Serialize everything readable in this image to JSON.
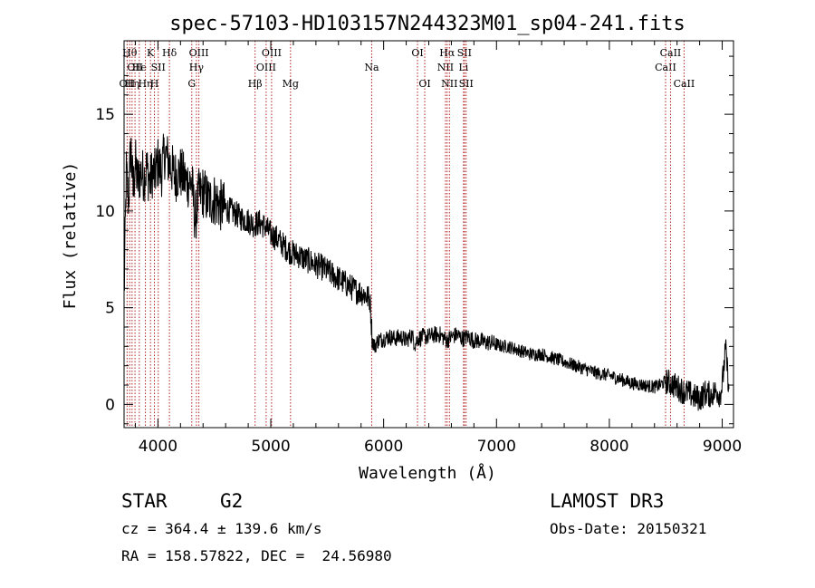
{
  "chart_data": {
    "type": "line",
    "title": "spec-57103-HD103157N244323M01_sp04-241.fits",
    "xlabel": "Wavelength (Å)",
    "ylabel": "Flux (relative)",
    "xlim": [
      3700,
      9100
    ],
    "ylim": [
      -1.2,
      18.8
    ],
    "x_ticks": [
      4000,
      5000,
      6000,
      7000,
      8000,
      9000
    ],
    "y_ticks": [
      0,
      5,
      10,
      15
    ],
    "grid": false,
    "legend": "none",
    "line_color": "#000000",
    "marker_color": "#b22222",
    "series": [
      {
        "x": [
          3700,
          3720,
          3740,
          3760,
          3780,
          3800,
          3820,
          3850,
          3880,
          3900,
          3930,
          3950,
          3970,
          4000,
          4030,
          4060,
          4100,
          4150,
          4200,
          4250,
          4300,
          4330,
          4360,
          4400,
          4450,
          4500,
          4550,
          4600,
          4650,
          4700,
          4750,
          4800,
          4850,
          4900,
          4950,
          5000,
          5050,
          5100,
          5150,
          5200,
          5250,
          5300,
          5350,
          5400,
          5450,
          5500,
          5550,
          5600,
          5650,
          5700,
          5750,
          5800,
          5850,
          5880,
          5900,
          5920,
          5950,
          6000,
          6050,
          6100,
          6150,
          6200,
          6250,
          6280,
          6300,
          6350,
          6400,
          6450,
          6500,
          6560,
          6600,
          6650,
          6700,
          6750,
          6800,
          6850,
          6900,
          6950,
          7000,
          7050,
          7100,
          7150,
          7200,
          7300,
          7400,
          7500,
          7600,
          7700,
          7800,
          7900,
          8000,
          8100,
          8200,
          8300,
          8400,
          8450,
          8500,
          8540,
          8600,
          8650,
          8700,
          8750,
          8800,
          8850,
          8900,
          8950,
          8980,
          9000,
          9030,
          9060
        ],
        "values": [
          5.5,
          12.0,
          10.5,
          13.5,
          11.0,
          12.5,
          11.5,
          12.0,
          11.8,
          12.2,
          11.5,
          12.0,
          11.8,
          12.5,
          12.0,
          13.0,
          12.5,
          11.8,
          12.0,
          11.5,
          11.5,
          9.5,
          10.8,
          11.0,
          10.5,
          10.6,
          10.3,
          10.1,
          10.0,
          9.8,
          9.6,
          9.5,
          9.3,
          9.4,
          9.2,
          8.8,
          8.6,
          8.3,
          8.0,
          7.8,
          7.7,
          7.5,
          7.4,
          7.2,
          7.1,
          6.9,
          6.7,
          6.5,
          6.3,
          6.1,
          5.9,
          5.8,
          5.6,
          5.4,
          3.3,
          3.0,
          3.3,
          3.4,
          3.5,
          3.4,
          3.5,
          3.3,
          3.6,
          3.1,
          3.4,
          3.5,
          3.5,
          3.6,
          3.6,
          3.3,
          3.5,
          3.6,
          3.4,
          3.5,
          3.3,
          3.3,
          3.2,
          3.2,
          3.1,
          3.0,
          3.0,
          2.9,
          2.8,
          2.6,
          2.6,
          2.4,
          2.2,
          2.0,
          1.8,
          1.6,
          1.5,
          1.3,
          1.1,
          1.0,
          0.9,
          1.0,
          1.2,
          1.1,
          0.9,
          0.7,
          0.6,
          0.4,
          0.3,
          0.6,
          0.5,
          0.7,
          0.5,
          1.0,
          2.9,
          0.8
        ]
      }
    ],
    "line_markers": [
      {
        "wavelength": 3727,
        "label": "OII",
        "row": 3
      },
      {
        "wavelength": 3750,
        "label": "Hθ",
        "row": 1
      },
      {
        "wavelength": 3771,
        "label": "Hη",
        "row": 3
      },
      {
        "wavelength": 3797,
        "label": "OII",
        "row": 2
      },
      {
        "wavelength": 3835,
        "label": "He",
        "row": 2
      },
      {
        "wavelength": 3889,
        "label": "Hη",
        "row": 3
      },
      {
        "wavelength": 3934,
        "label": "K",
        "row": 1
      },
      {
        "wavelength": 3969,
        "label": "H",
        "row": 3
      },
      {
        "wavelength": 4003,
        "label": "SII",
        "row": 2
      },
      {
        "wavelength": 4102,
        "label": "Hδ",
        "row": 1
      },
      {
        "wavelength": 4300,
        "label": "G",
        "row": 3
      },
      {
        "wavelength": 4341,
        "label": "Hγ",
        "row": 2
      },
      {
        "wavelength": 4363,
        "label": "OIII",
        "row": 1
      },
      {
        "wavelength": 4861,
        "label": "Hβ",
        "row": 3
      },
      {
        "wavelength": 4959,
        "label": "OIII",
        "row": 2
      },
      {
        "wavelength": 5007,
        "label": "OIII",
        "row": 1
      },
      {
        "wavelength": 5175,
        "label": "Mg",
        "row": 3
      },
      {
        "wavelength": 5894,
        "label": "Na",
        "row": 2
      },
      {
        "wavelength": 6300,
        "label": "OI",
        "row": 1
      },
      {
        "wavelength": 6364,
        "label": "OI",
        "row": 3
      },
      {
        "wavelength": 6548,
        "label": "NII",
        "row": 2
      },
      {
        "wavelength": 6563,
        "label": "Hα",
        "row": 1
      },
      {
        "wavelength": 6583,
        "label": "NII",
        "row": 3
      },
      {
        "wavelength": 6708,
        "label": "Li",
        "row": 2
      },
      {
        "wavelength": 6716,
        "label": "SII",
        "row": 1
      },
      {
        "wavelength": 6731,
        "label": "SII",
        "row": 3
      },
      {
        "wavelength": 8498,
        "label": "CaII",
        "row": 2
      },
      {
        "wavelength": 8542,
        "label": "CaII",
        "row": 1
      },
      {
        "wavelength": 8662,
        "label": "CaII",
        "row": 3
      }
    ]
  },
  "info": {
    "object_class": "STAR",
    "subclass": "G2",
    "survey": "LAMOST DR3",
    "redshift": "cz = 364.4 ± 139.6 km/s",
    "obs_date": "Obs-Date: 20150321",
    "coords": "RA = 158.57822, DEC =  24.56980"
  }
}
